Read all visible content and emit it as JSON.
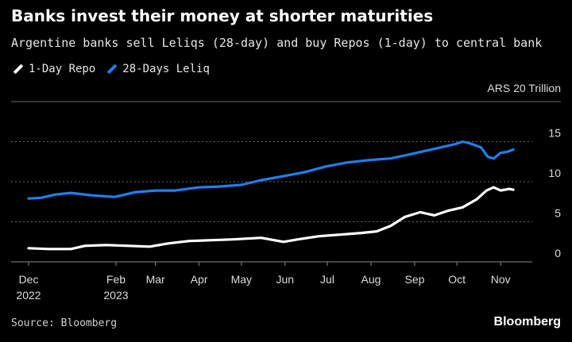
{
  "header": {
    "title": "Banks invest their money at shorter maturities",
    "subtitle": "Argentine banks sell Leliqs (28-day) and buy Repos (1-day) to central bank"
  },
  "legend": {
    "items": [
      {
        "label": "1-Day Repo",
        "color": "#ffffff"
      },
      {
        "label": "28-Days Leliq",
        "color": "#1f7ff0"
      }
    ]
  },
  "unit_label": "ARS 20 Trillion",
  "footer": {
    "source": "Source: Bloomberg",
    "brand": "Bloomberg"
  },
  "chart_data": {
    "type": "line",
    "ylabel": "ARS Trillion",
    "ylim": [
      0,
      20
    ],
    "yticks": [
      0,
      5,
      10,
      15
    ],
    "ytick_labels": [
      "0",
      "5",
      "10",
      "15"
    ],
    "xlim": [
      "2022-12-01",
      "2023-11-15"
    ],
    "xticks": [
      {
        "date": "2022-12-01",
        "label": "Dec",
        "sublabel": "2022"
      },
      {
        "date": "2023-02-01",
        "label": "Feb",
        "sublabel": "2023"
      },
      {
        "date": "2023-03-01",
        "label": "Mar",
        "sublabel": ""
      },
      {
        "date": "2023-04-01",
        "label": "Apr",
        "sublabel": ""
      },
      {
        "date": "2023-05-01",
        "label": "May",
        "sublabel": ""
      },
      {
        "date": "2023-06-01",
        "label": "Jun",
        "sublabel": ""
      },
      {
        "date": "2023-07-01",
        "label": "Jul",
        "sublabel": ""
      },
      {
        "date": "2023-08-01",
        "label": "Aug",
        "sublabel": ""
      },
      {
        "date": "2023-09-01",
        "label": "Sep",
        "sublabel": ""
      },
      {
        "date": "2023-10-01",
        "label": "Oct",
        "sublabel": ""
      },
      {
        "date": "2023-11-01",
        "label": "Nov",
        "sublabel": ""
      }
    ],
    "grid": true,
    "series": [
      {
        "name": "1-Day Repo",
        "color": "#ffffff",
        "points": [
          [
            "2022-12-01",
            1.7
          ],
          [
            "2022-12-15",
            1.6
          ],
          [
            "2022-12-31",
            1.6
          ],
          [
            "2023-01-10",
            2.0
          ],
          [
            "2023-01-25",
            2.1
          ],
          [
            "2023-02-10",
            2.0
          ],
          [
            "2023-02-25",
            1.9
          ],
          [
            "2023-03-10",
            2.3
          ],
          [
            "2023-03-25",
            2.6
          ],
          [
            "2023-04-10",
            2.7
          ],
          [
            "2023-04-25",
            2.8
          ],
          [
            "2023-05-05",
            2.9
          ],
          [
            "2023-05-15",
            3.0
          ],
          [
            "2023-05-31",
            2.5
          ],
          [
            "2023-06-10",
            2.8
          ],
          [
            "2023-06-25",
            3.2
          ],
          [
            "2023-07-10",
            3.4
          ],
          [
            "2023-07-25",
            3.6
          ],
          [
            "2023-08-05",
            3.8
          ],
          [
            "2023-08-15",
            4.5
          ],
          [
            "2023-08-25",
            5.6
          ],
          [
            "2023-09-05",
            6.2
          ],
          [
            "2023-09-15",
            5.8
          ],
          [
            "2023-09-25",
            6.4
          ],
          [
            "2023-10-05",
            6.8
          ],
          [
            "2023-10-15",
            7.8
          ],
          [
            "2023-10-22",
            8.9
          ],
          [
            "2023-10-27",
            9.3
          ],
          [
            "2023-11-01",
            8.9
          ],
          [
            "2023-11-07",
            9.1
          ],
          [
            "2023-11-10",
            9.0
          ]
        ]
      },
      {
        "name": "28-Days Leliq",
        "color": "#1f7ff0",
        "points": [
          [
            "2022-12-01",
            7.9
          ],
          [
            "2022-12-10",
            8.0
          ],
          [
            "2022-12-20",
            8.4
          ],
          [
            "2022-12-31",
            8.6
          ],
          [
            "2023-01-15",
            8.3
          ],
          [
            "2023-01-31",
            8.1
          ],
          [
            "2023-02-15",
            8.7
          ],
          [
            "2023-03-01",
            8.9
          ],
          [
            "2023-03-15",
            8.9
          ],
          [
            "2023-04-01",
            9.3
          ],
          [
            "2023-04-15",
            9.4
          ],
          [
            "2023-05-01",
            9.6
          ],
          [
            "2023-05-15",
            10.2
          ],
          [
            "2023-05-31",
            10.7
          ],
          [
            "2023-06-15",
            11.2
          ],
          [
            "2023-06-30",
            11.9
          ],
          [
            "2023-07-15",
            12.4
          ],
          [
            "2023-07-31",
            12.7
          ],
          [
            "2023-08-15",
            12.9
          ],
          [
            "2023-08-31",
            13.5
          ],
          [
            "2023-09-15",
            14.1
          ],
          [
            "2023-09-30",
            14.7
          ],
          [
            "2023-10-05",
            15.0
          ],
          [
            "2023-10-10",
            14.8
          ],
          [
            "2023-10-18",
            14.3
          ],
          [
            "2023-10-23",
            13.1
          ],
          [
            "2023-10-27",
            12.9
          ],
          [
            "2023-11-01",
            13.6
          ],
          [
            "2023-11-05",
            13.7
          ],
          [
            "2023-11-10",
            14.0
          ]
        ]
      }
    ]
  }
}
